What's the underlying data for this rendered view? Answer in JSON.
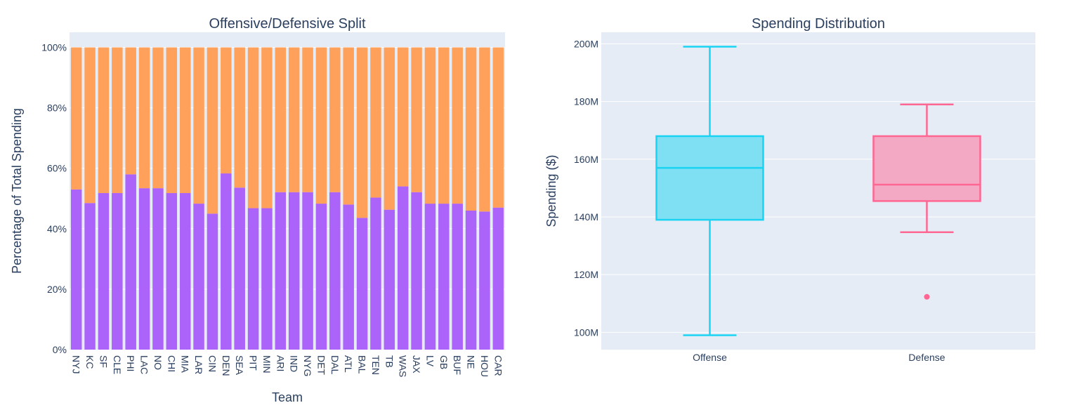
{
  "chart_data": [
    {
      "type": "bar",
      "title": "Offensive/Defensive Split",
      "xlabel": "Team",
      "ylabel": "Percentage of Total Spending",
      "ylim": [
        0,
        1.05
      ],
      "ytick_labels": [
        "0%",
        "20%",
        "40%",
        "60%",
        "80%",
        "100%"
      ],
      "stacked": true,
      "grid": true,
      "categories": [
        "NYJ",
        "KC",
        "SF",
        "CLE",
        "PHI",
        "LAC",
        "NO",
        "CHI",
        "MIA",
        "LAR",
        "CIN",
        "DEN",
        "SEA",
        "PIT",
        "MIN",
        "ARI",
        "IND",
        "NYG",
        "DET",
        "DAL",
        "ATL",
        "BAL",
        "TEN",
        "TB",
        "WAS",
        "JAX",
        "LV",
        "GB",
        "BUF",
        "NE",
        "HOU",
        "CAR"
      ],
      "series": [
        {
          "color": "#ab63fa",
          "values": [
            0.53,
            0.485,
            0.518,
            0.518,
            0.58,
            0.534,
            0.534,
            0.518,
            0.518,
            0.483,
            0.45,
            0.583,
            0.536,
            0.468,
            0.468,
            0.521,
            0.521,
            0.521,
            0.483,
            0.521,
            0.48,
            0.436,
            0.503,
            0.463,
            0.54,
            0.521,
            0.483,
            0.483,
            0.483,
            0.46,
            0.457,
            0.47
          ]
        },
        {
          "color": "#ffa15a",
          "values": [
            0.47,
            0.515,
            0.482,
            0.482,
            0.42,
            0.466,
            0.466,
            0.482,
            0.482,
            0.517,
            0.55,
            0.417,
            0.464,
            0.532,
            0.532,
            0.479,
            0.479,
            0.479,
            0.517,
            0.479,
            0.52,
            0.564,
            0.497,
            0.537,
            0.46,
            0.479,
            0.517,
            0.517,
            0.517,
            0.54,
            0.543,
            0.53
          ]
        }
      ]
    },
    {
      "type": "box",
      "title": "Spending Distribution",
      "xlabel": "",
      "ylabel": "Spending ($)",
      "ylim": [
        94000000,
        204000000
      ],
      "yticks": [
        100000000,
        120000000,
        140000000,
        160000000,
        180000000,
        200000000
      ],
      "ytick_labels": [
        "100M",
        "120M",
        "140M",
        "160M",
        "180M",
        "200M"
      ],
      "grid": true,
      "categories": [
        "Offense",
        "Defense"
      ],
      "series": [
        {
          "color": "#19d3f3",
          "fill": "#7fdff3",
          "min": 99000000,
          "q1": 139000000,
          "median": 157000000,
          "q3": 168000000,
          "max": 199000000,
          "outliers": []
        },
        {
          "color": "#ff6692",
          "fill": "#f3a9c4",
          "min": 134700000,
          "q1": 145500000,
          "median": 151200000,
          "q3": 168000000,
          "max": 179000000,
          "outliers": [
            112300000
          ]
        }
      ]
    }
  ]
}
